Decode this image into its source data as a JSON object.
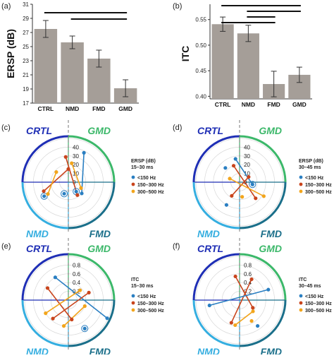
{
  "chart_data": [
    {
      "panel_label": "(a)",
      "type": "bar",
      "categories": [
        "CTRL",
        "NMD",
        "FMD",
        "GMD"
      ],
      "values": [
        27.5,
        25.6,
        23.3,
        19.1
      ],
      "errors": [
        1.2,
        0.9,
        1.2,
        1.2
      ],
      "ylabel": "ERSP (dB)",
      "ylim": [
        17,
        31
      ],
      "yticks": [
        "17",
        "19",
        "21",
        "23",
        "25",
        "27",
        "29",
        "31"
      ],
      "ytick_values": [
        17,
        19,
        21,
        23,
        25,
        27,
        29,
        31
      ],
      "significance_bars": [
        [
          0,
          3
        ],
        [
          1,
          3
        ]
      ],
      "bar_color": "#a59e98"
    },
    {
      "panel_label": "(b)",
      "type": "bar",
      "categories": [
        "CTRL",
        "NMD",
        "FMD",
        "GMD"
      ],
      "values": [
        0.541,
        0.523,
        0.424,
        0.442
      ],
      "errors": [
        0.014,
        0.016,
        0.025,
        0.015
      ],
      "ylabel": "ITC",
      "ylim": [
        0.395,
        0.58
      ],
      "yticks": [
        "0.40",
        "0.45",
        "0.50",
        "0.55"
      ],
      "ytick_values": [
        0.4,
        0.45,
        0.5,
        0.55
      ],
      "significance_bars": [
        [
          0,
          3
        ],
        [
          1,
          3
        ],
        [
          1,
          2
        ],
        [
          0,
          2
        ]
      ],
      "bar_color": "#a59e98"
    },
    {
      "panel_label": "(c)",
      "type": "scatter",
      "legend_title": "ERSP (dB)",
      "window": "15–30 ms",
      "rticks": [
        "40",
        "30",
        "20",
        "10",
        "0"
      ],
      "rmax": 50
    },
    {
      "panel_label": "(d)",
      "type": "scatter",
      "legend_title": "ERSP (dB)",
      "window": "30–45 ms",
      "rticks": [
        "40",
        "30",
        "20",
        "10",
        "0"
      ],
      "rmax": 50
    },
    {
      "panel_label": "(e)",
      "type": "scatter",
      "legend_title": "ITC",
      "window": "15–30 ms",
      "rticks": [
        "0.8",
        "0.6",
        "0.4",
        "0.2"
      ],
      "rmax": 1.0
    },
    {
      "panel_label": "(f)",
      "type": "scatter",
      "legend_title": "ITC",
      "window": "30–45 ms",
      "rticks": [
        "0.8",
        "0.6",
        "0.4",
        "0.2"
      ],
      "rmax": 1.0
    }
  ],
  "quadrants": [
    {
      "label": "CRTL",
      "color": "#1f2fb5"
    },
    {
      "label": "GMD",
      "color": "#3cb86a"
    },
    {
      "label": "NMD",
      "color": "#35aee0"
    },
    {
      "label": "FMD",
      "color": "#1b6f8a"
    }
  ],
  "legend": [
    {
      "label": "<150 Hz",
      "color": "#2a7fc2"
    },
    {
      "label": "150–300 Hz",
      "color": "#c9441c"
    },
    {
      "label": "300–500 Hz",
      "color": "#f2a51c"
    }
  ]
}
